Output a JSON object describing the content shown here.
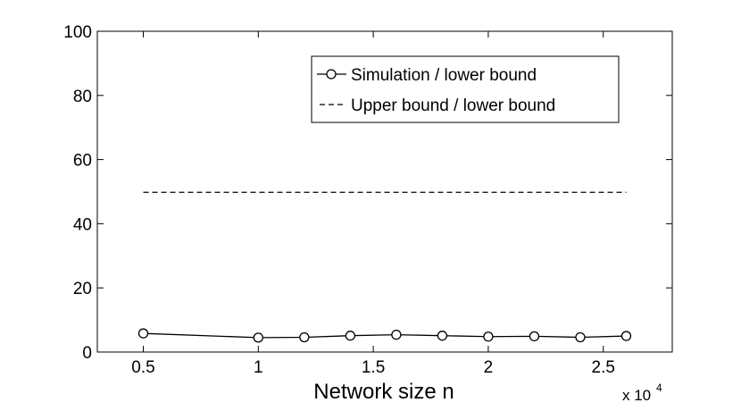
{
  "chart_data": {
    "type": "line",
    "title": "",
    "xlabel": "Network size n",
    "ylabel": "",
    "x_multiplier_label": {
      "base": "x 10",
      "exponent": "4"
    },
    "xlim": [
      0.3,
      2.8
    ],
    "ylim": [
      0,
      100
    ],
    "xticks": [
      0.5,
      1,
      1.5,
      2,
      2.5
    ],
    "xtick_labels": [
      "0.5",
      "1",
      "1.5",
      "2",
      "2.5"
    ],
    "yticks": [
      0,
      20,
      40,
      60,
      80,
      100
    ],
    "ytick_labels": [
      "0",
      "20",
      "40",
      "60",
      "80",
      "100"
    ],
    "grid": false,
    "legend_position": "top-right",
    "series": [
      {
        "name": "Simulation / lower bound",
        "style": "solid-circle-markers",
        "color": "#000000",
        "x": [
          0.5,
          1.0,
          1.2,
          1.4,
          1.6,
          1.8,
          2.0,
          2.2,
          2.4,
          2.6
        ],
        "y": [
          5.8,
          4.5,
          4.6,
          5.1,
          5.4,
          5.1,
          4.8,
          4.9,
          4.6,
          5.0
        ]
      },
      {
        "name": "Upper bound / lower bound",
        "style": "dashed",
        "color": "#000000",
        "x": [
          0.5,
          2.6
        ],
        "y": [
          49.8,
          49.8
        ]
      }
    ]
  }
}
